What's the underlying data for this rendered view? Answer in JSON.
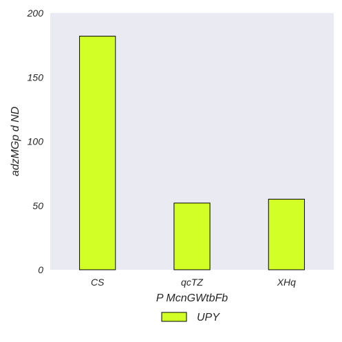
{
  "chart_data": {
    "type": "bar",
    "categories": [
      "CS",
      "qcTZ",
      "XHq"
    ],
    "series": [
      {
        "name": "UPY",
        "values": [
          182,
          52,
          55
        ],
        "color": "#d1ff26"
      }
    ],
    "xlabel": "P McnGWtbFb",
    "ylabel": "adzMGp d ND",
    "ylim": [
      0,
      200
    ],
    "yticks": [
      0,
      50,
      100,
      150,
      200
    ],
    "grid": false,
    "legend": "bottom-center",
    "plot_background": "#eaeaf2",
    "bar_edge_color": "#000000"
  }
}
